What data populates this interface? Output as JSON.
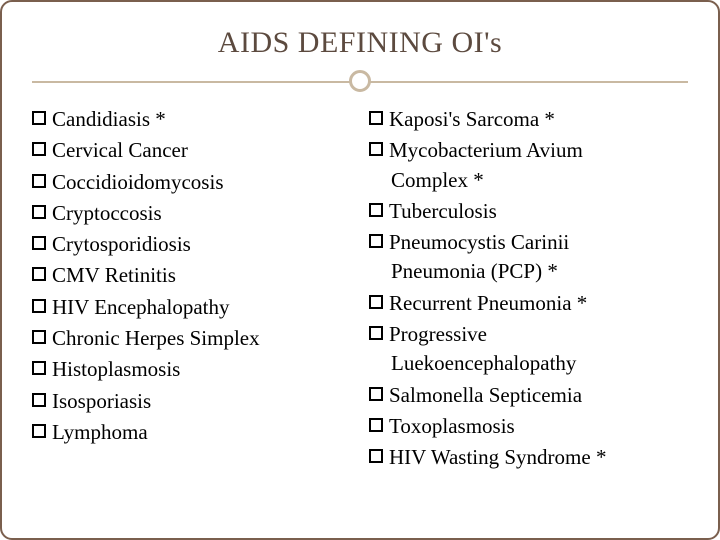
{
  "title": "AIDS DEFINING OI's",
  "colors": {
    "border": "#7a5f4e",
    "title": "#5c4a3f",
    "divider": "#c9b9a2",
    "text": "#000000",
    "background": "#ffffff"
  },
  "typography": {
    "title_fontsize_pt": 22,
    "body_fontsize_pt": 16,
    "font_family": "Georgia / serif"
  },
  "left_items": [
    {
      "text": "Candidiasis *"
    },
    {
      "text": "Cervical Cancer"
    },
    {
      "text": "Coccidioidomycosis"
    },
    {
      "text": "Cryptoccosis"
    },
    {
      "text": "Crytosporidiosis"
    },
    {
      "text": "CMV Retinitis"
    },
    {
      "text": "HIV Encephalopathy"
    },
    {
      "text": "Chronic Herpes Simplex"
    },
    {
      "text": "Histoplasmosis"
    },
    {
      "text": "Isosporiasis"
    },
    {
      "text": "Lymphoma"
    }
  ],
  "right_items": [
    {
      "text": "Kaposi's Sarcoma *"
    },
    {
      "text": "Mycobacterium Avium",
      "cont": "Complex *"
    },
    {
      "text": "Tuberculosis"
    },
    {
      "text": "Pneumocystis Carinii",
      "cont": "Pneumonia (PCP) *"
    },
    {
      "text": "Recurrent Pneumonia *"
    },
    {
      "text": "Progressive",
      "cont": "Luekoencephalopathy"
    },
    {
      "text": "Salmonella Septicemia"
    },
    {
      "text": "Toxoplasmosis"
    },
    {
      "text": "HIV Wasting Syndrome *"
    }
  ]
}
